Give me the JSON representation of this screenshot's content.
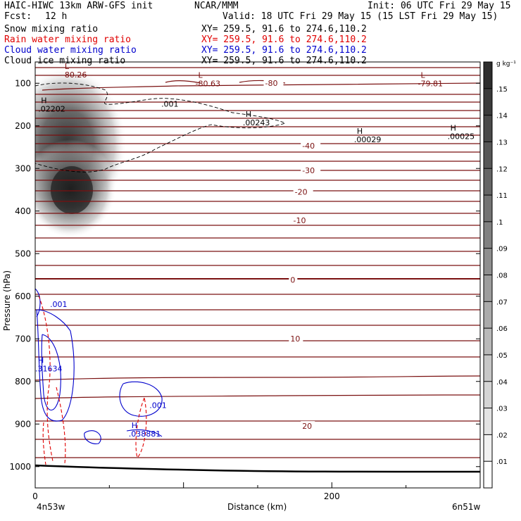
{
  "header": {
    "title": "HAIC-HIWC 13km ARW-GFS init",
    "org": "NCAR/MMM",
    "init": "Init: 06 UTC Fri 29 May 15",
    "fcst_label": "Fcst:",
    "fcst_value": "12 h",
    "valid": "Valid: 18 UTC Fri 29 May 15 (15 LST Fri 29 May 15)"
  },
  "fields": [
    {
      "name": "Snow mixing ratio",
      "xy": "XY= 259.5, 91.6 to 274.6,110.2",
      "color": "#000000"
    },
    {
      "name": "Rain water mixing ratio",
      "xy": "XY= 259.5, 91.6 to 274.6,110.2",
      "color": "#e00000"
    },
    {
      "name": "Cloud water mixing ratio",
      "xy": "XY= 259.5, 91.6 to 274.6,110.2",
      "color": "#0000cc"
    },
    {
      "name": "Cloud ice mixing ratio",
      "xy": "XY= 259.5, 91.6 to 274.6,110.2",
      "color": "#000000"
    }
  ],
  "chart_data": {
    "type": "heatmap",
    "xlabel": "Distance (km)",
    "ylabel": "Pressure (hPa)",
    "xlim": [
      0,
      300
    ],
    "ylim": [
      1050,
      50
    ],
    "x_ticks": [
      0,
      200
    ],
    "x_tick_labels": [
      "0",
      "200"
    ],
    "y_ticks": [
      100,
      200,
      300,
      400,
      500,
      600,
      700,
      800,
      900,
      1000
    ],
    "y_tick_labels": [
      "100",
      "200",
      "300",
      "400",
      "500",
      "600",
      "700",
      "800",
      "900",
      "1000"
    ],
    "x_end_labels": {
      "left": "4n53w",
      "right": "6n51w"
    },
    "colorbar": {
      "unit": "g kg⁻¹",
      "levels": [
        0.01,
        0.02,
        0.03,
        0.04,
        0.05,
        0.06,
        0.07,
        0.08,
        0.09,
        0.1,
        0.11,
        0.12,
        0.13,
        0.14,
        0.15
      ],
      "labels": [
        ".01",
        ".02",
        ".03",
        ".04",
        ".05",
        ".06",
        ".07",
        ".08",
        ".09",
        ".1",
        ".11",
        ".12",
        ".13",
        ".14",
        ".15"
      ]
    },
    "cloud_ice_max": [
      {
        "x": 2,
        "p": 160,
        "label": "H",
        "value": ".02202"
      }
    ],
    "temperature_contour_labels": [
      {
        "value": "-80",
        "x": 155,
        "p": 103
      },
      {
        "value": "-40",
        "x": 180,
        "p": 250
      },
      {
        "value": "-30",
        "x": 180,
        "p": 308
      },
      {
        "value": "-20",
        "x": 175,
        "p": 358
      },
      {
        "value": "-10",
        "x": 174,
        "p": 425
      },
      {
        "value": "0",
        "x": 172,
        "p": 565
      },
      {
        "value": "10",
        "x": 172,
        "p": 703
      },
      {
        "value": "20",
        "x": 180,
        "p": 908
      }
    ],
    "temperature_extrema": [
      {
        "label": "L",
        "value": "-80.26",
        "x": 18,
        "p": 80
      },
      {
        "label": "L",
        "value": "-80.63",
        "x": 108,
        "p": 100
      },
      {
        "label": "L",
        "value": "-79.81",
        "x": 258,
        "p": 100
      }
    ],
    "snow_extrema": [
      {
        "label": "H",
        "value": ".00243",
        "x": 140,
        "p": 192
      },
      {
        "label": "H",
        "value": ".00029",
        "x": 215,
        "p": 232
      },
      {
        "label": "H",
        "value": ".00025",
        "x": 278,
        "p": 224
      }
    ],
    "snow_contour_label": {
      "value": ".001",
      "x": 85,
      "p": 155
    },
    "cloud_water_contour_labels": [
      {
        "value": ".001",
        "x": 10,
        "p": 625
      },
      {
        "value": ".001",
        "x": 77,
        "p": 862
      }
    ],
    "cloud_water_extrema": [
      {
        "label": "H",
        "value": ".31634",
        "x": 0,
        "p": 770
      },
      {
        "label": "H",
        "value": ".038881",
        "x": 63,
        "p": 923
      }
    ]
  }
}
